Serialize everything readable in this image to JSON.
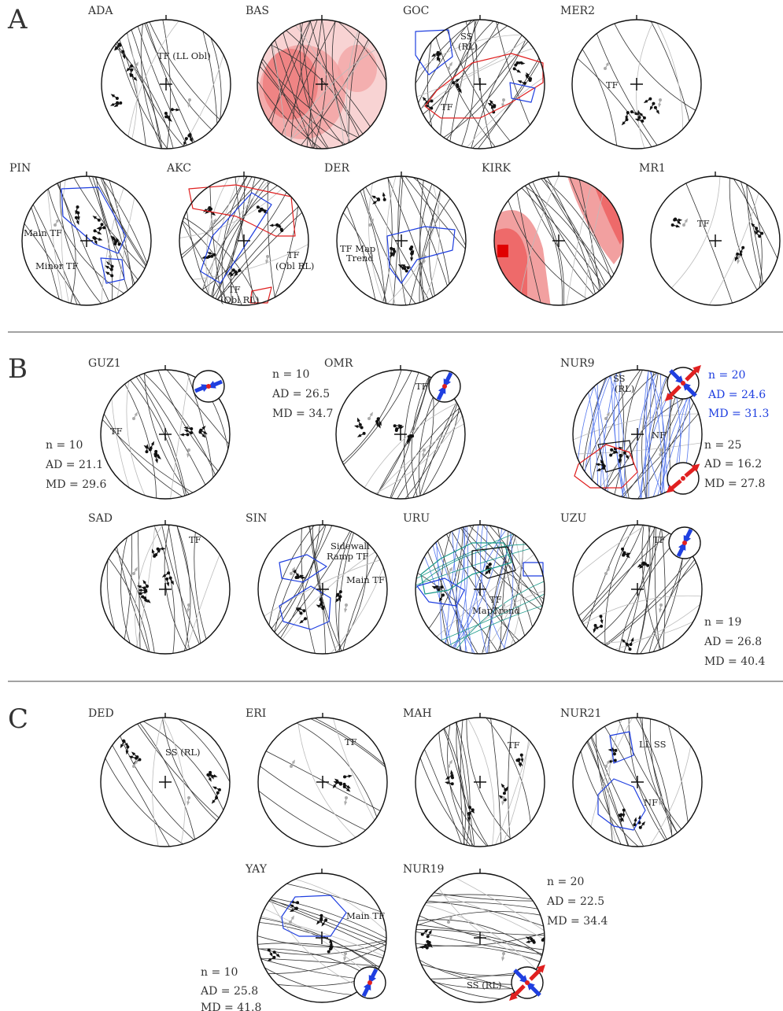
{
  "sections": [
    "A",
    "B",
    "C"
  ],
  "sites": {
    "ADA": {
      "name": "ADA",
      "labels": [
        "TF (LL Obl)"
      ]
    },
    "BAS": {
      "name": "BAS",
      "labels": []
    },
    "GOC": {
      "name": "GOC",
      "labels": [
        "SS",
        "(RL)",
        "TF"
      ]
    },
    "MER2": {
      "name": "MER2",
      "labels": [
        "TF"
      ]
    },
    "PIN": {
      "name": "PIN",
      "labels": [
        "Main TF",
        "Minor TF"
      ]
    },
    "AKC": {
      "name": "AKC",
      "labels": [
        "TF",
        "(Obl RL)",
        "TF",
        "(Obl RL)"
      ]
    },
    "DER": {
      "name": "DER",
      "labels": [
        "TF Map",
        "Trend"
      ]
    },
    "KIRK": {
      "name": "KIRK",
      "labels": []
    },
    "MR1": {
      "name": "MR1",
      "labels": [
        "TF"
      ]
    },
    "GUZ1": {
      "name": "GUZ1",
      "labels": [
        "TF"
      ],
      "stats": [
        "n = 10",
        "AD = 21.1",
        "MD = 29.6"
      ]
    },
    "OMR": {
      "name": "OMR",
      "labels": [
        "TF"
      ],
      "stats": [
        "n = 10",
        "AD = 26.5",
        "MD = 34.7"
      ]
    },
    "NUR9": {
      "name": "NUR9",
      "labels": [
        "SS",
        "(RL)",
        "NF"
      ],
      "stats_blue": [
        "n = 20",
        "AD = 24.6",
        "MD = 31.3"
      ],
      "stats": [
        "n = 25",
        "AD = 16.2",
        "MD = 27.8"
      ]
    },
    "SAD": {
      "name": "SAD",
      "labels": [
        "TF"
      ]
    },
    "SIN": {
      "name": "SIN",
      "labels": [
        "Sidewall",
        "Ramp TF",
        "Main TF"
      ]
    },
    "URU": {
      "name": "URU",
      "labels": [
        "TF",
        "MapTrend"
      ]
    },
    "UZU": {
      "name": "UZU",
      "labels": [
        "TF"
      ],
      "stats": [
        "n = 19",
        "AD = 26.8",
        "MD = 40.4"
      ]
    },
    "DED": {
      "name": "DED",
      "labels": [
        "SS (RL)"
      ]
    },
    "ERI": {
      "name": "ERI",
      "labels": [
        "TF"
      ]
    },
    "MAH": {
      "name": "MAH",
      "labels": [
        "TF"
      ]
    },
    "NUR21": {
      "name": "NUR21",
      "labels": [
        "LL SS",
        "NF"
      ]
    },
    "YAY": {
      "name": "YAY",
      "labels": [
        "Main TF"
      ],
      "stats": [
        "n = 10",
        "AD = 25.8",
        "MD = 41.8"
      ]
    },
    "NUR19": {
      "name": "NUR19",
      "labels": [
        "SS (RL)"
      ],
      "stats": [
        "n = 20",
        "AD = 22.5",
        "MD = 34.4"
      ]
    }
  },
  "colors": {
    "black": "#222222",
    "gray": "#9a9a9a",
    "blue": "#1f3fe0",
    "red": "#e02020",
    "teal": "#1a9a8a",
    "pink_light": "#f8d3d3",
    "pink": "#f2a0a0",
    "red_dark": "#e84040"
  }
}
